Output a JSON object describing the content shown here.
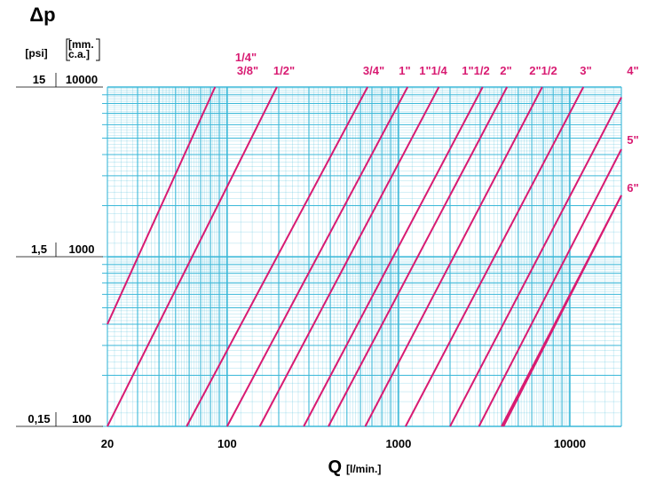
{
  "chart_data": {
    "type": "line",
    "title": "Δp",
    "xlabel": "Q",
    "xlabel_unit": "[l/min.]",
    "x_scale": "log",
    "y_scale": "log",
    "xlim": [
      20,
      20000
    ],
    "ylim": [
      100,
      10000
    ],
    "x_ticks": [
      {
        "value": 20,
        "label": "20"
      },
      {
        "value": 100,
        "label": "100"
      },
      {
        "value": 1000,
        "label": "1000"
      },
      {
        "value": 10000,
        "label": "10000"
      }
    ],
    "y_axes": [
      {
        "unit_label": "[psi]",
        "ticks": [
          {
            "value": 10000,
            "label": "15"
          },
          {
            "value": 1000,
            "label": "1,5"
          },
          {
            "value": 100,
            "label": "0,15"
          }
        ]
      },
      {
        "unit_label": "[mm.\nc.a.]",
        "ticks": [
          {
            "value": 10000,
            "label": "10000"
          },
          {
            "value": 1000,
            "label": "1000"
          },
          {
            "value": 100,
            "label": "100"
          }
        ]
      }
    ],
    "grid": true,
    "grid_color": "#3cb8d8",
    "series_color": "#d81b72",
    "series": [
      {
        "name": "1/4\"",
        "points": [
          [
            20,
            400
          ],
          [
            85,
            10000
          ]
        ]
      },
      {
        "name": "3/8\"",
        "points": [
          [
            20,
            100
          ],
          [
            195,
            10000
          ]
        ]
      },
      {
        "name": "1/2\"",
        "points": [
          [
            58,
            100
          ],
          [
            660,
            10000
          ]
        ]
      },
      {
        "name": "3/4\"",
        "points": [
          [
            100,
            100
          ],
          [
            1130,
            10000
          ]
        ]
      },
      {
        "name": "1\"",
        "points": [
          [
            155,
            100
          ],
          [
            1720,
            10000
          ]
        ]
      },
      {
        "name": "1\"1/4",
        "points": [
          [
            280,
            100
          ],
          [
            3100,
            10000
          ]
        ]
      },
      {
        "name": "1\"1/2",
        "points": [
          [
            390,
            100
          ],
          [
            4300,
            10000
          ]
        ]
      },
      {
        "name": "2\"",
        "points": [
          [
            640,
            100
          ],
          [
            6900,
            10000
          ]
        ]
      },
      {
        "name": "2\"1/2",
        "points": [
          [
            1100,
            100
          ],
          [
            12000,
            10000
          ]
        ]
      },
      {
        "name": "3\"",
        "points": [
          [
            2000,
            100
          ],
          [
            20000,
            8700
          ]
        ]
      },
      {
        "name": "4\"",
        "points": [
          [
            2950,
            100
          ],
          [
            20000,
            4300
          ]
        ]
      },
      {
        "name": "5\"",
        "points": [
          [
            4100,
            100
          ],
          [
            20000,
            2300
          ]
        ]
      },
      {
        "name": "6\"",
        "points": [
          [
            4000,
            100
          ],
          [
            20000,
            2300
          ]
        ]
      }
    ]
  }
}
